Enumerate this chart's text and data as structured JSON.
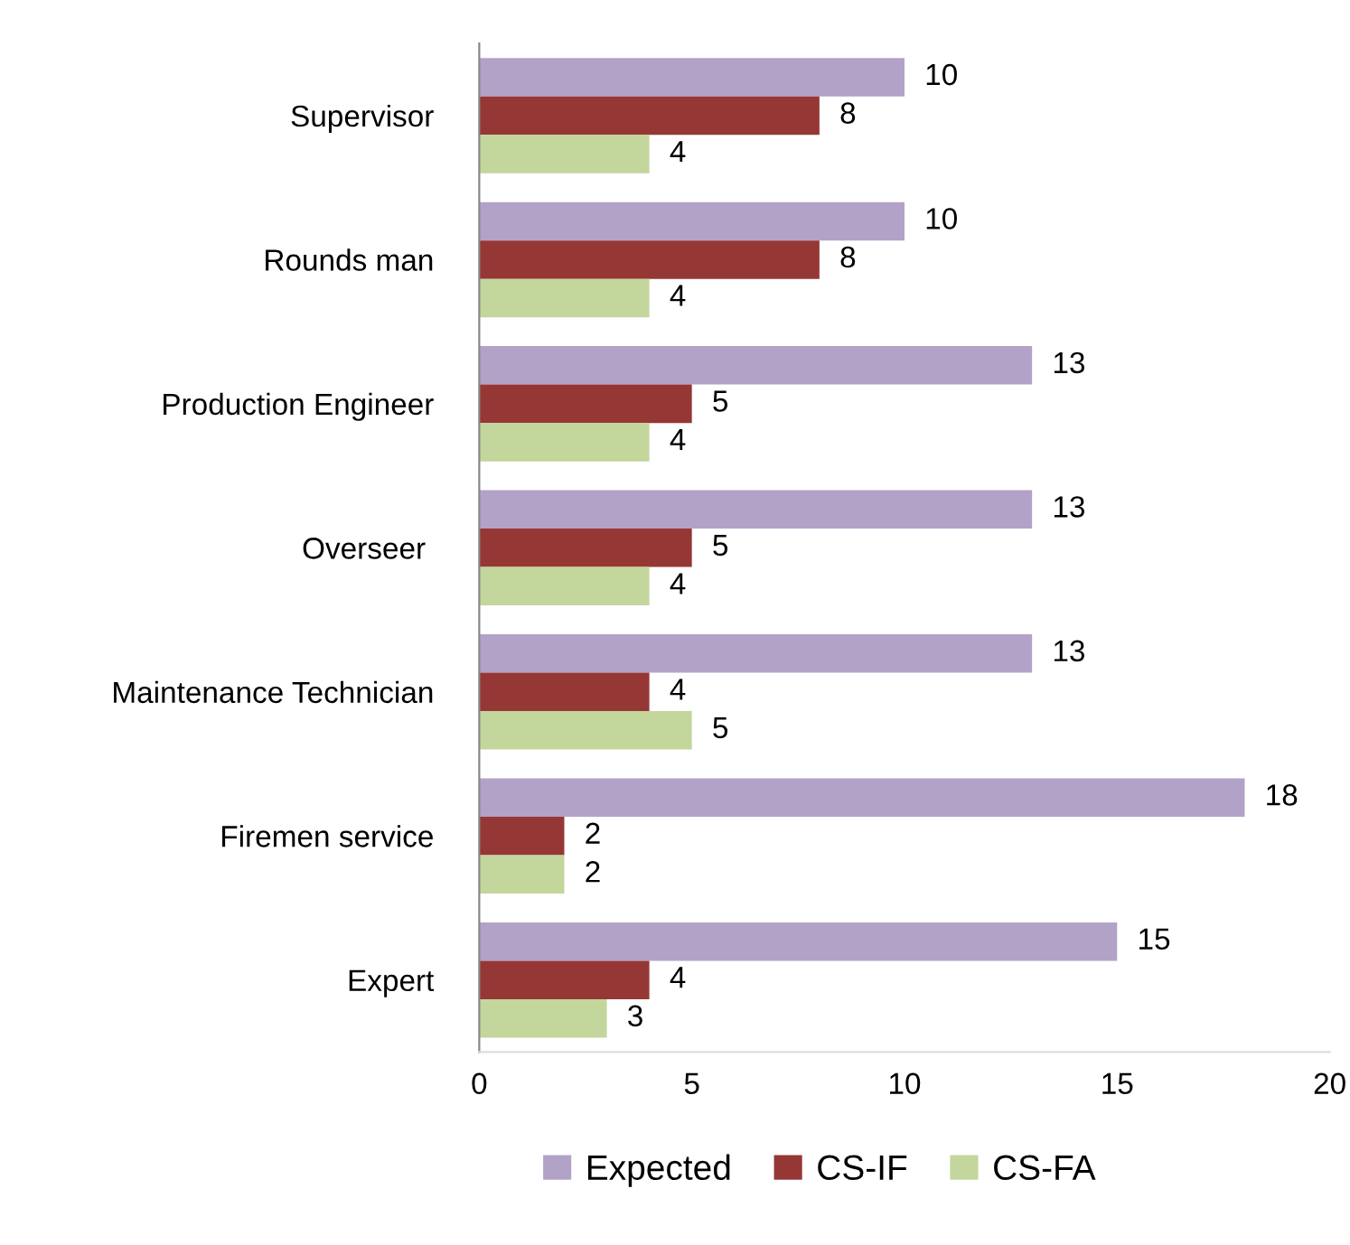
{
  "chart_data": {
    "type": "bar",
    "orientation": "horizontal",
    "categories": [
      "Supervisor",
      "Rounds man",
      "Production Engineer",
      "Overseer ",
      "Maintenance Technician",
      "Firemen service",
      "Expert"
    ],
    "series": [
      {
        "name": "Expected",
        "color": "#b3a2c7",
        "values": [
          10,
          10,
          13,
          13,
          13,
          18,
          15
        ]
      },
      {
        "name": "CS-IF",
        "color": "#953735",
        "values": [
          8,
          8,
          5,
          5,
          4,
          2,
          4
        ]
      },
      {
        "name": "CS-FA",
        "color": "#c3d69b",
        "values": [
          4,
          4,
          4,
          4,
          5,
          2,
          3
        ]
      }
    ],
    "xlim": [
      0,
      20
    ],
    "xticks": [
      0,
      5,
      10,
      15,
      20
    ],
    "data_labels": true,
    "grid": false,
    "legend": "bottom"
  }
}
